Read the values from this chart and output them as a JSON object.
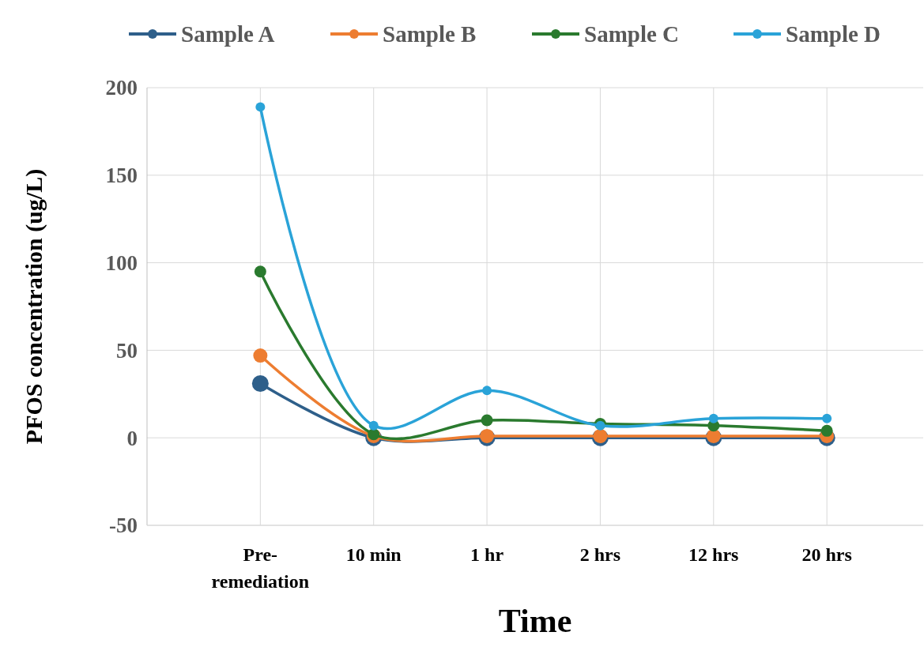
{
  "chart_data": {
    "type": "line",
    "xlabel": "Time",
    "ylabel": "PFOS concentration (ug/L)",
    "categories": [
      "Pre-\nremediation",
      "10 min",
      "1 hr",
      "2 hrs",
      "12 hrs",
      "20 hrs"
    ],
    "series": [
      {
        "name": "Sample A",
        "color": "#2e5f8a",
        "values": [
          31,
          0,
          0,
          0,
          0,
          0
        ]
      },
      {
        "name": "Sample B",
        "color": "#ed7d31",
        "values": [
          47,
          1,
          1,
          1,
          1,
          1
        ]
      },
      {
        "name": "Sample C",
        "color": "#2a7a2e",
        "values": [
          95,
          2,
          10,
          8,
          7,
          4
        ]
      },
      {
        "name": "Sample D",
        "color": "#2aa3d8",
        "values": [
          189,
          7,
          27,
          7,
          11,
          11
        ]
      }
    ],
    "ylim": [
      -50,
      200
    ],
    "yticks": [
      -50,
      0,
      50,
      100,
      150,
      200
    ],
    "grid": true,
    "legend": "top",
    "marker": "circle",
    "line_style": "solid"
  }
}
